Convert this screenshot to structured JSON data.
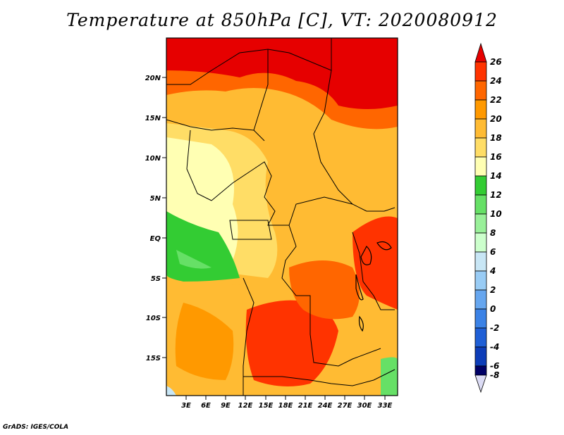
{
  "title": "Temperature at 850hPa [C], VT: 2020080912",
  "credit": "GrADS: IGES/COLA",
  "map": {
    "lat_labels": [
      "20N",
      "15N",
      "10N",
      "5N",
      "EQ",
      "5S",
      "10S",
      "15S"
    ],
    "lon_labels": [
      "3E",
      "6E",
      "9E",
      "12E",
      "15E",
      "18E",
      "21E",
      "24E",
      "27E",
      "30E",
      "33E"
    ],
    "lon_range": [
      0,
      35
    ],
    "lat_range": [
      -20,
      25
    ]
  },
  "colorbar": {
    "labels": [
      "26",
      "24",
      "22",
      "20",
      "18",
      "16",
      "14",
      "12",
      "10",
      "8",
      "6",
      "4",
      "2",
      "0",
      "-2",
      "-4",
      "-6",
      "-8"
    ],
    "colors": [
      "#e60000",
      "#ff3300",
      "#ff6600",
      "#ff9900",
      "#ffbb33",
      "#ffdd66",
      "#ffffb3",
      "#33cc33",
      "#66e066",
      "#99f099",
      "#ccffcc",
      "#c8e6f5",
      "#99ccf5",
      "#66a6ef",
      "#3b82e6",
      "#1f5fd6",
      "#0d3db8",
      "#08248f",
      "#000066",
      "#dcdcf5"
    ]
  },
  "colors": {
    "hot": "#e60000",
    "warm": "#ff6600",
    "orange": "#ff9900",
    "lightorange": "#ffbb33",
    "yellow": "#ffdd66",
    "pale": "#ffffb3",
    "green": "#33cc33",
    "lightgreen": "#99f099"
  }
}
